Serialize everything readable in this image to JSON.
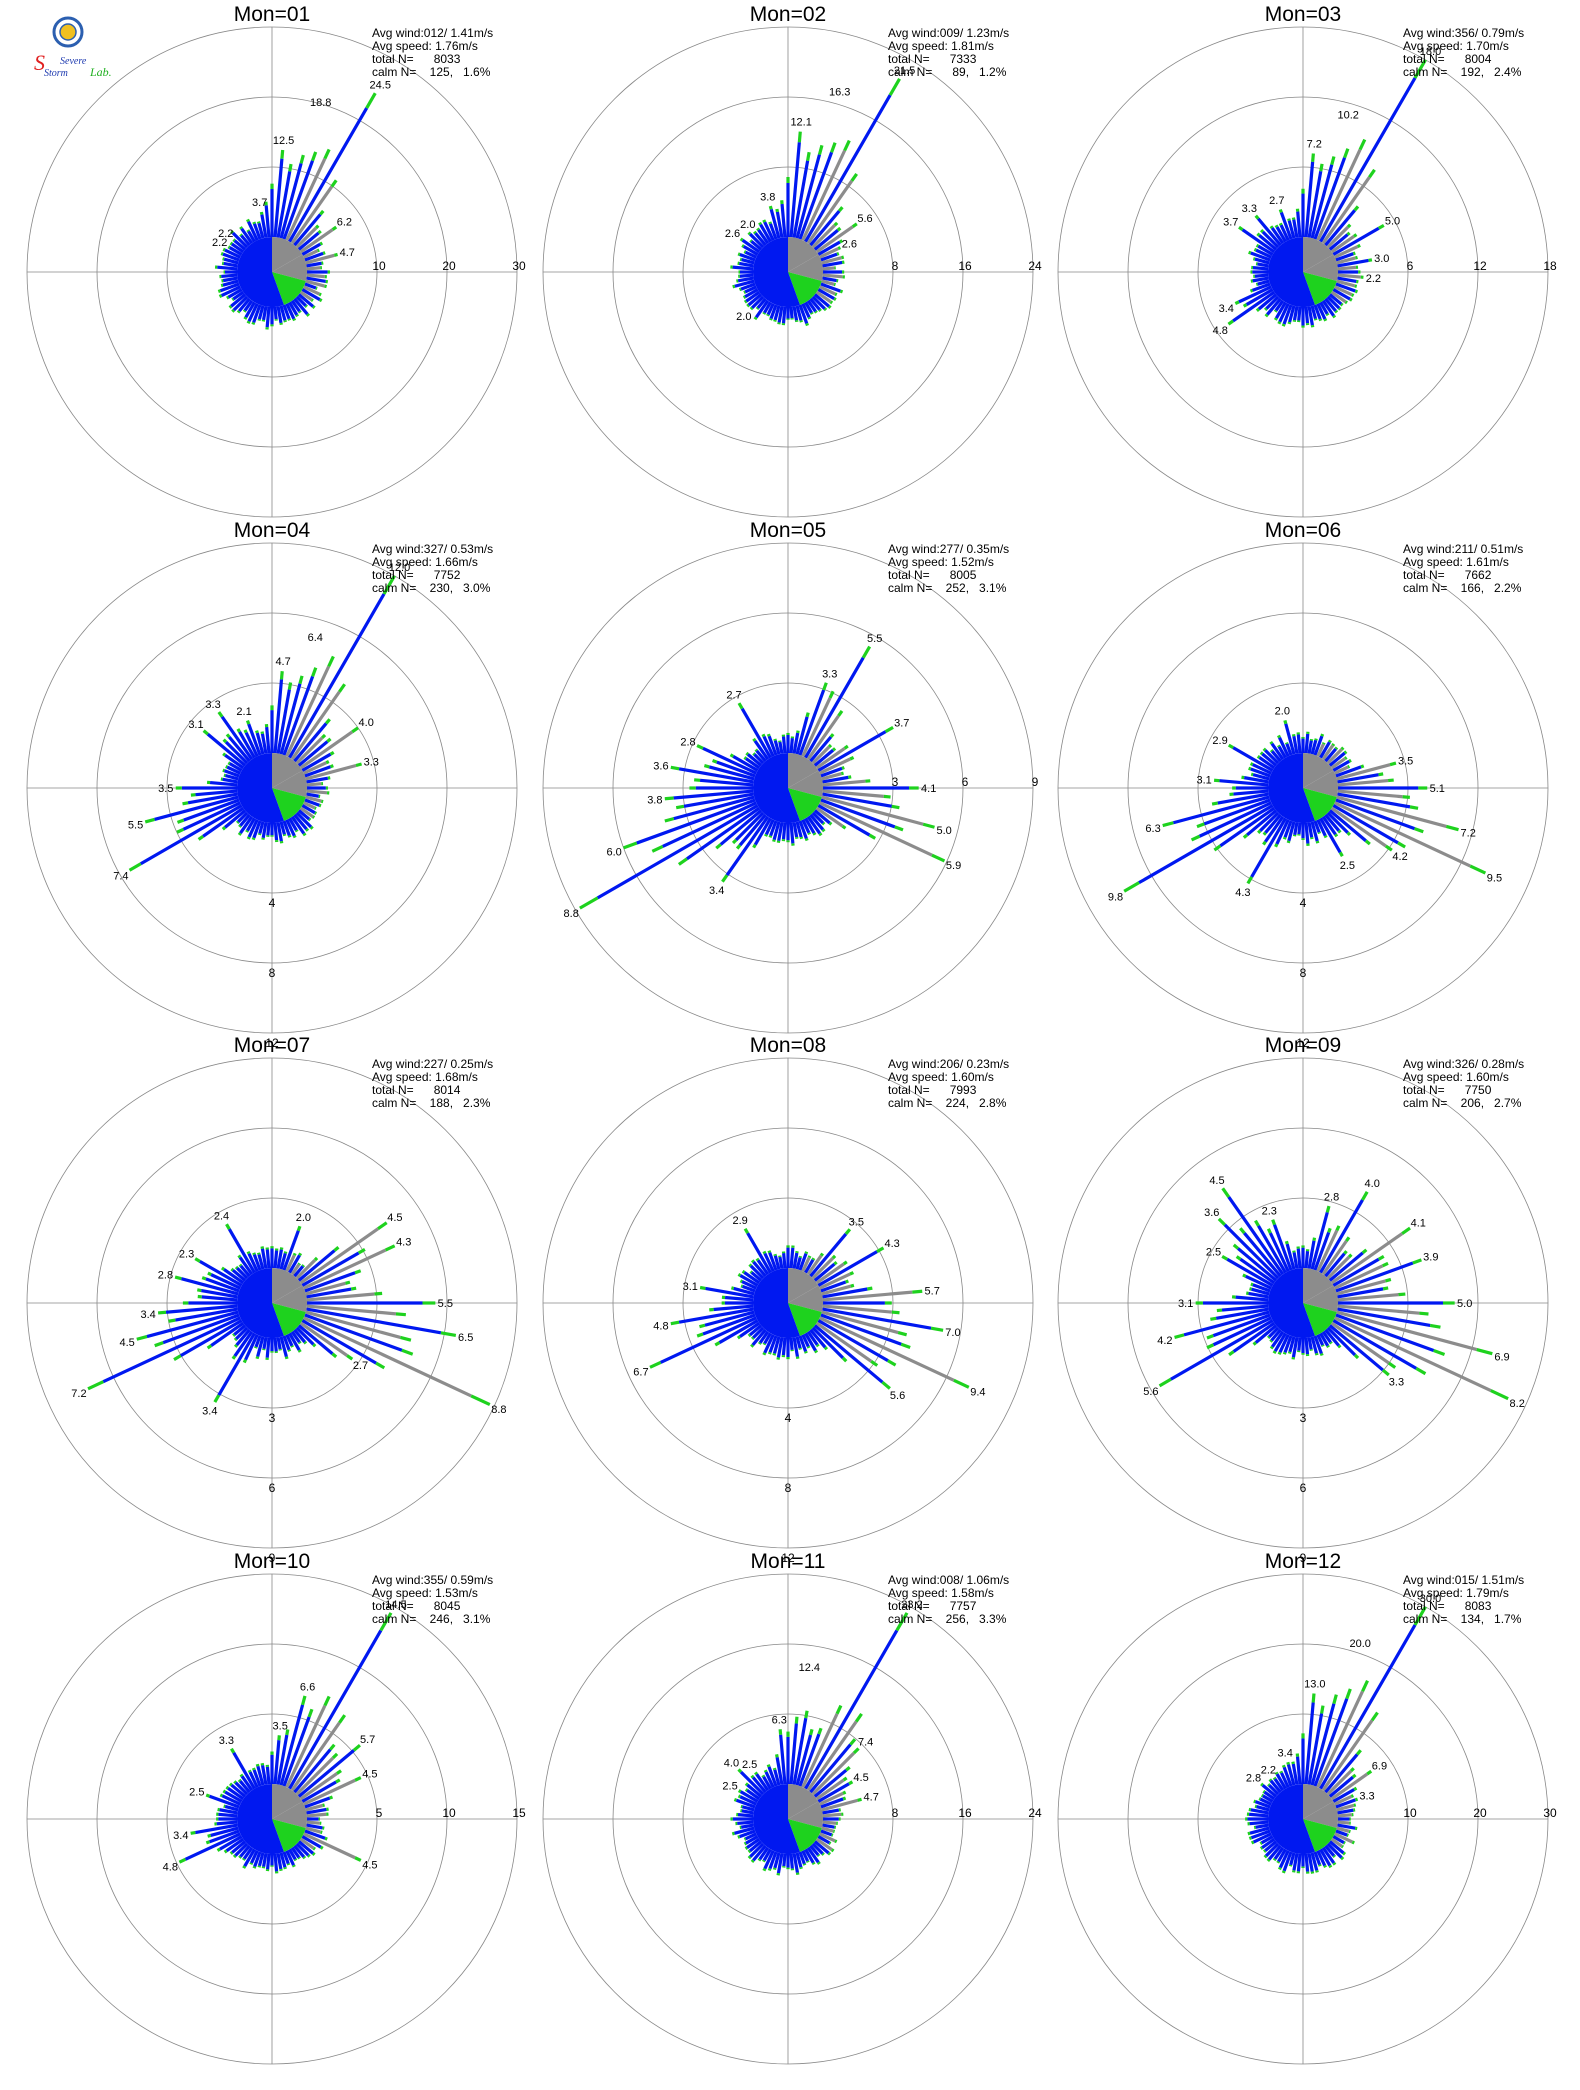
{
  "logo": {
    "text_top": "Severe",
    "text_mid": "Storm",
    "text_lab": "Lab."
  },
  "colors": {
    "blue": "#0018f0",
    "green": "#1ed21e",
    "gray": "#8c8c8c",
    "ring": "#888888",
    "text": "#000000"
  },
  "chart_data": [
    {
      "type": "rose",
      "title": "Mon=01",
      "stats": {
        "avg_wind": "Avg wind:012/ 1.41m/s",
        "avg_speed": "Avg speed: 1.76m/s",
        "total": "total N=      8033",
        "calm": "calm N=    125,   1.6%"
      },
      "rings": [
        10,
        20,
        30
      ],
      "max": 30,
      "labels": [
        {
          "dir": 350,
          "v": "3.7"
        },
        {
          "dir": 5,
          "v": "12.5"
        },
        {
          "dir": 16,
          "v": "18.8"
        },
        {
          "dir": 30,
          "v": "24.5"
        },
        {
          "dir": 55,
          "v": "6.2"
        },
        {
          "dir": 75,
          "v": "4.7"
        },
        {
          "dir": 300,
          "v": "2.2"
        },
        {
          "dir": 310,
          "v": "2.2"
        }
      ]
    },
    {
      "type": "rose",
      "title": "Mon=02",
      "stats": {
        "avg_wind": "Avg wind:009/ 1.23m/s",
        "avg_speed": "Avg speed: 1.81m/s",
        "total": "total N=      7333",
        "calm": "calm N=      89,   1.2%"
      },
      "rings": [
        8,
        16,
        24
      ],
      "max": 24,
      "labels": [
        {
          "dir": 345,
          "v": "3.8"
        },
        {
          "dir": 5,
          "v": "12.1"
        },
        {
          "dir": 16,
          "v": "16.3"
        },
        {
          "dir": 30,
          "v": "21.5"
        },
        {
          "dir": 55,
          "v": "5.6"
        },
        {
          "dir": 65,
          "v": "2.6"
        },
        {
          "dir": 225,
          "v": "2.0"
        },
        {
          "dir": 305,
          "v": "2.6"
        },
        {
          "dir": 320,
          "v": "2.0"
        }
      ]
    },
    {
      "type": "rose",
      "title": "Mon=03",
      "stats": {
        "avg_wind": "Avg wind:356/ 0.79m/s",
        "avg_speed": "Avg speed: 1.70m/s",
        "total": "total N=      8004",
        "calm": "calm N=    192,   2.4%"
      },
      "rings": [
        6,
        12,
        18
      ],
      "max": 18,
      "labels": [
        {
          "dir": 340,
          "v": "2.7"
        },
        {
          "dir": 5,
          "v": "7.2"
        },
        {
          "dir": 16,
          "v": "10.2"
        },
        {
          "dir": 30,
          "v": "18.0"
        },
        {
          "dir": 60,
          "v": "5.0"
        },
        {
          "dir": 80,
          "v": "3.0"
        },
        {
          "dir": 95,
          "v": "2.2"
        },
        {
          "dir": 235,
          "v": "4.8"
        },
        {
          "dir": 245,
          "v": "3.4"
        },
        {
          "dir": 305,
          "v": "3.7"
        },
        {
          "dir": 320,
          "v": "3.3"
        }
      ]
    },
    {
      "type": "rose",
      "title": "Mon=04",
      "stats": {
        "avg_wind": "Avg wind:327/ 0.53m/s",
        "avg_speed": "Avg speed: 1.66m/s",
        "total": "total N=      7752",
        "calm": "calm N=    230,   3.0%"
      },
      "rings": [
        4,
        8,
        12
      ],
      "max": 12,
      "labels": [
        {
          "dir": 5,
          "v": "4.7"
        },
        {
          "dir": 16,
          "v": "6.4"
        },
        {
          "dir": 30,
          "v": "12.0"
        },
        {
          "dir": 55,
          "v": "4.0"
        },
        {
          "dir": 75,
          "v": "3.3"
        },
        {
          "dir": 240,
          "v": "7.4"
        },
        {
          "dir": 255,
          "v": "5.5"
        },
        {
          "dir": 270,
          "v": "3.5"
        },
        {
          "dir": 310,
          "v": "3.1"
        },
        {
          "dir": 325,
          "v": "3.3"
        },
        {
          "dir": 340,
          "v": "2.1"
        }
      ]
    },
    {
      "type": "rose",
      "title": "Mon=05",
      "stats": {
        "avg_wind": "Avg wind:277/ 0.35m/s",
        "avg_speed": "Avg speed: 1.52m/s",
        "total": "total N=      8005",
        "calm": "calm N=    252,   3.1%"
      },
      "rings": [
        3,
        6,
        9
      ],
      "max": 9,
      "labels": [
        {
          "dir": 20,
          "v": "3.3"
        },
        {
          "dir": 30,
          "v": "5.5"
        },
        {
          "dir": 60,
          "v": "3.7"
        },
        {
          "dir": 90,
          "v": "4.1"
        },
        {
          "dir": 105,
          "v": "5.0"
        },
        {
          "dir": 115,
          "v": "5.9"
        },
        {
          "dir": 215,
          "v": "3.4"
        },
        {
          "dir": 240,
          "v": "8.8"
        },
        {
          "dir": 250,
          "v": "6.0"
        },
        {
          "dir": 265,
          "v": "3.8"
        },
        {
          "dir": 280,
          "v": "3.6"
        },
        {
          "dir": 295,
          "v": "2.8"
        },
        {
          "dir": 330,
          "v": "2.7"
        }
      ]
    },
    {
      "type": "rose",
      "title": "Mon=06",
      "stats": {
        "avg_wind": "Avg wind:211/ 0.51m/s",
        "avg_speed": "Avg speed: 1.61m/s",
        "total": "total N=      7662",
        "calm": "calm N=    166,   2.2%"
      },
      "rings": [
        4,
        8,
        12
      ],
      "max": 12,
      "labels": [
        {
          "dir": 75,
          "v": "3.5"
        },
        {
          "dir": 90,
          "v": "5.1"
        },
        {
          "dir": 105,
          "v": "7.2"
        },
        {
          "dir": 115,
          "v": "9.5"
        },
        {
          "dir": 125,
          "v": "4.2"
        },
        {
          "dir": 150,
          "v": "2.5"
        },
        {
          "dir": 210,
          "v": "4.3"
        },
        {
          "dir": 240,
          "v": "9.8"
        },
        {
          "dir": 255,
          "v": "6.3"
        },
        {
          "dir": 275,
          "v": "3.1"
        },
        {
          "dir": 300,
          "v": "2.9"
        },
        {
          "dir": 345,
          "v": "2.0"
        }
      ]
    },
    {
      "type": "rose",
      "title": "Mon=07",
      "stats": {
        "avg_wind": "Avg wind:227/ 0.25m/s",
        "avg_speed": "Avg speed: 1.68m/s",
        "total": "total N=      8014",
        "calm": "calm N=    188,   2.3%"
      },
      "rings": [
        3,
        6,
        9
      ],
      "max": 9,
      "labels": [
        {
          "dir": 20,
          "v": "2.0"
        },
        {
          "dir": 55,
          "v": "4.5"
        },
        {
          "dir": 65,
          "v": "4.3"
        },
        {
          "dir": 90,
          "v": "5.5"
        },
        {
          "dir": 100,
          "v": "6.5"
        },
        {
          "dir": 115,
          "v": "8.8"
        },
        {
          "dir": 125,
          "v": "2.7"
        },
        {
          "dir": 210,
          "v": "3.4"
        },
        {
          "dir": 245,
          "v": "7.2"
        },
        {
          "dir": 255,
          "v": "4.5"
        },
        {
          "dir": 265,
          "v": "3.4"
        },
        {
          "dir": 285,
          "v": "2.8"
        },
        {
          "dir": 300,
          "v": "2.3"
        },
        {
          "dir": 330,
          "v": "2.4"
        }
      ]
    },
    {
      "type": "rose",
      "title": "Mon=08",
      "stats": {
        "avg_wind": "Avg wind:206/ 0.23m/s",
        "avg_speed": "Avg speed: 1.60m/s",
        "total": "total N=      7993",
        "calm": "calm N=    224,   2.8%"
      },
      "rings": [
        4,
        8,
        12
      ],
      "max": 12,
      "labels": [
        {
          "dir": 40,
          "v": "3.5"
        },
        {
          "dir": 60,
          "v": "4.3"
        },
        {
          "dir": 85,
          "v": "5.7"
        },
        {
          "dir": 100,
          "v": "7.0"
        },
        {
          "dir": 115,
          "v": "9.4"
        },
        {
          "dir": 130,
          "v": "5.6"
        },
        {
          "dir": 245,
          "v": "6.7"
        },
        {
          "dir": 260,
          "v": "4.8"
        },
        {
          "dir": 280,
          "v": "3.1"
        },
        {
          "dir": 330,
          "v": "2.9"
        }
      ]
    },
    {
      "type": "rose",
      "title": "Mon=09",
      "stats": {
        "avg_wind": "Avg wind:326/ 0.28m/s",
        "avg_speed": "Avg speed: 1.60m/s",
        "total": "total N=      7750",
        "calm": "calm N=    206,   2.7%"
      },
      "rings": [
        3,
        6,
        9
      ],
      "max": 9,
      "labels": [
        {
          "dir": 15,
          "v": "2.8"
        },
        {
          "dir": 30,
          "v": "4.0"
        },
        {
          "dir": 55,
          "v": "4.1"
        },
        {
          "dir": 70,
          "v": "3.9"
        },
        {
          "dir": 90,
          "v": "5.0"
        },
        {
          "dir": 105,
          "v": "6.9"
        },
        {
          "dir": 115,
          "v": "8.2"
        },
        {
          "dir": 130,
          "v": "3.3"
        },
        {
          "dir": 240,
          "v": "5.6"
        },
        {
          "dir": 255,
          "v": "4.2"
        },
        {
          "dir": 270,
          "v": "3.1"
        },
        {
          "dir": 300,
          "v": "2.5"
        },
        {
          "dir": 315,
          "v": "3.6"
        },
        {
          "dir": 325,
          "v": "4.5"
        },
        {
          "dir": 340,
          "v": "2.3"
        }
      ]
    },
    {
      "type": "rose",
      "title": "Mon=10",
      "stats": {
        "avg_wind": "Avg wind:355/ 0.59m/s",
        "avg_speed": "Avg speed: 1.53m/s",
        "total": "total N=      8045",
        "calm": "calm N=    246,   3.1%"
      },
      "rings": [
        5,
        10,
        15
      ],
      "max": 15,
      "labels": [
        {
          "dir": 5,
          "v": "3.5"
        },
        {
          "dir": 15,
          "v": "6.6"
        },
        {
          "dir": 30,
          "v": "14.5"
        },
        {
          "dir": 50,
          "v": "5.7"
        },
        {
          "dir": 65,
          "v": "4.5"
        },
        {
          "dir": 115,
          "v": "4.5"
        },
        {
          "dir": 245,
          "v": "4.8"
        },
        {
          "dir": 260,
          "v": "3.4"
        },
        {
          "dir": 290,
          "v": "2.5"
        },
        {
          "dir": 330,
          "v": "3.3"
        }
      ]
    },
    {
      "type": "rose",
      "title": "Mon=11",
      "stats": {
        "avg_wind": "Avg wind:008/ 1.06m/s",
        "avg_speed": "Avg speed: 1.58m/s",
        "total": "total N=      7757",
        "calm": "calm N=    256,   3.3%"
      },
      "rings": [
        8,
        16,
        24
      ],
      "max": 24,
      "labels": [
        {
          "dir": 355,
          "v": "6.3"
        },
        {
          "dir": 8,
          "v": "12.4"
        },
        {
          "dir": 30,
          "v": "23.2"
        },
        {
          "dir": 45,
          "v": "7.4"
        },
        {
          "dir": 60,
          "v": "4.5"
        },
        {
          "dir": 75,
          "v": "4.7"
        },
        {
          "dir": 300,
          "v": "2.5"
        },
        {
          "dir": 315,
          "v": "4.0"
        },
        {
          "dir": 325,
          "v": "2.5"
        }
      ]
    },
    {
      "type": "rose",
      "title": "Mon=12",
      "stats": {
        "avg_wind": "Avg wind:015/ 1.51m/s",
        "avg_speed": "Avg speed: 1.79m/s",
        "total": "total N=      8083",
        "calm": "calm N=    134,   1.7%"
      },
      "rings": [
        10,
        20,
        30
      ],
      "max": 30,
      "labels": [
        {
          "dir": 345,
          "v": "3.4"
        },
        {
          "dir": 5,
          "v": "13.0"
        },
        {
          "dir": 18,
          "v": "20.0"
        },
        {
          "dir": 30,
          "v": "30.0"
        },
        {
          "dir": 55,
          "v": "6.9"
        },
        {
          "dir": 70,
          "v": "3.3"
        },
        {
          "dir": 310,
          "v": "2.8"
        },
        {
          "dir": 325,
          "v": "2.2"
        }
      ]
    }
  ]
}
